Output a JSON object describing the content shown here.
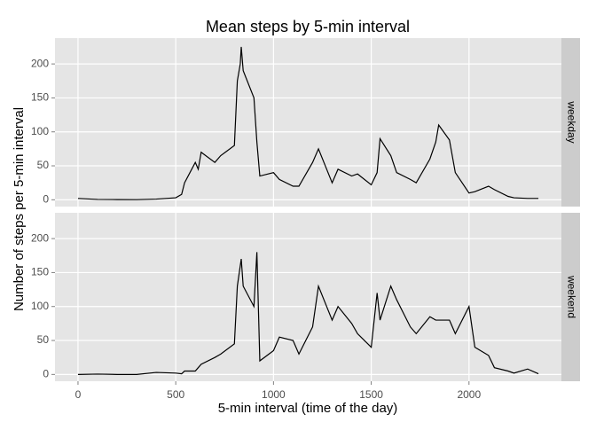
{
  "chart_data": {
    "type": "line",
    "title": "Mean steps by 5-min interval",
    "x_label": "5-min interval (time of the day)",
    "y_label": "Number of steps per 5-min interval",
    "x": [
      0,
      100,
      200,
      300,
      400,
      500,
      530,
      545,
      600,
      615,
      630,
      700,
      730,
      800,
      815,
      830,
      835,
      845,
      900,
      915,
      930,
      1000,
      1030,
      1100,
      1130,
      1200,
      1230,
      1300,
      1330,
      1400,
      1430,
      1500,
      1530,
      1545,
      1600,
      1630,
      1700,
      1730,
      1800,
      1830,
      1845,
      1900,
      1930,
      2000,
      2030,
      2100,
      2130,
      2200,
      2230,
      2300,
      2355
    ],
    "series": [
      {
        "name": "weekday",
        "color": "#000000",
        "values": [
          2,
          0.5,
          0.3,
          0.2,
          1,
          3,
          8,
          25,
          55,
          45,
          70,
          55,
          65,
          80,
          175,
          200,
          225,
          190,
          150,
          85,
          35,
          40,
          30,
          20,
          20,
          55,
          75,
          25,
          45,
          35,
          38,
          22,
          40,
          90,
          65,
          40,
          30,
          25,
          60,
          85,
          110,
          88,
          40,
          10,
          12,
          20,
          15,
          5,
          3,
          2,
          2
        ]
      },
      {
        "name": "weekend",
        "color": "#000000",
        "values": [
          0,
          0.5,
          0,
          0,
          3,
          2,
          1,
          5,
          5,
          10,
          15,
          25,
          30,
          45,
          130,
          160,
          170,
          130,
          100,
          180,
          20,
          35,
          55,
          50,
          30,
          70,
          130,
          80,
          100,
          75,
          60,
          40,
          120,
          80,
          130,
          110,
          70,
          60,
          85,
          80,
          80,
          80,
          60,
          100,
          40,
          28,
          10,
          5,
          2,
          8,
          1
        ]
      }
    ],
    "xlim": [
      -117.75,
      2472.75
    ],
    "xticks": [
      0,
      500,
      1000,
      1500,
      2000
    ],
    "ylim": [
      -10,
      238
    ],
    "yticks": [
      0,
      50,
      100,
      150,
      200
    ],
    "grid": true
  }
}
